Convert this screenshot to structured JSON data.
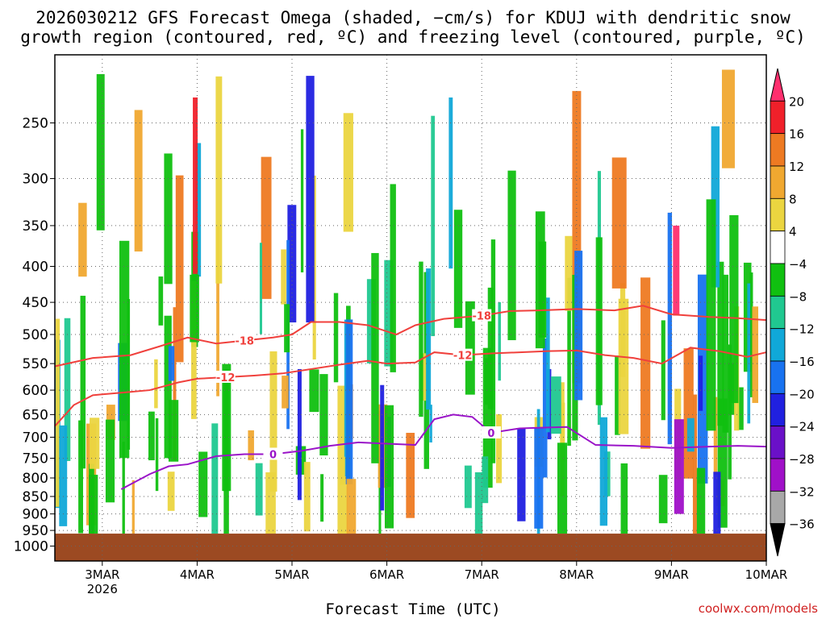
{
  "title_line1": "2026030212 GFS Forecast Omega (shaded, −cm/s) for KDUJ with dendritic snow",
  "title_line2": "growth region (contoured, red, ºC) and freezing level (contoured, purple, ºC)",
  "credit": "coolwx.com/models",
  "colors": {
    "ground": "#9c4a22",
    "red_contour": "#f0403c",
    "purple_contour": "#9a14c8",
    "grid": "#666666"
  },
  "chart_data": {
    "type": "heatmap",
    "title": "2026030212 GFS Forecast Omega (shaded, −cm/s) for KDUJ with dendritic snow growth region (contoured, red, ºC) and freezing level (contoured, purple, ºC)",
    "xlabel": "Forecast Time (UTC)",
    "ylabel": "",
    "x_ticks": [
      {
        "label": "3MAR",
        "sub": "2026",
        "day": 3
      },
      {
        "label": "4MAR",
        "sub": "",
        "day": 4
      },
      {
        "label": "5MAR",
        "sub": "",
        "day": 5
      },
      {
        "label": "6MAR",
        "sub": "",
        "day": 6
      },
      {
        "label": "7MAR",
        "sub": "",
        "day": 7
      },
      {
        "label": "8MAR",
        "sub": "",
        "day": 8
      },
      {
        "label": "9MAR",
        "sub": "",
        "day": 9
      },
      {
        "label": "10MAR",
        "sub": "",
        "day": 10
      }
    ],
    "xlim": [
      2.5,
      10.0
    ],
    "y_ticks": [
      250,
      300,
      350,
      400,
      450,
      500,
      550,
      600,
      650,
      700,
      750,
      800,
      850,
      900,
      950,
      1000
    ],
    "ylim": [
      200,
      1050
    ],
    "y_scale": "log",
    "grid": true,
    "colorbar": {
      "labels": [
        "20",
        "16",
        "12",
        "8",
        "4",
        "−4",
        "−8",
        "−12",
        "−16",
        "−20",
        "−24",
        "−28",
        "−32",
        "−36"
      ],
      "colors": [
        "#ff2f6e",
        "#f0202a",
        "#ee7a22",
        "#f0a830",
        "#ebd540",
        "#ffffff",
        "#10c010",
        "#20c890",
        "#10a8d8",
        "#1872f0",
        "#2020e0",
        "#6a10c8",
        "#a010c8",
        "#a8a8a8",
        "#000000"
      ]
    },
    "contours": [
      {
        "label": "-18",
        "color": "#f0403c",
        "x": [
          2.5,
          2.9,
          3.3,
          3.6,
          3.9,
          4.2,
          4.5,
          4.8,
          5.0,
          5.2,
          5.5,
          5.8,
          6.1,
          6.3,
          6.6,
          7.0,
          7.3,
          7.6,
          8.0,
          8.4,
          8.7,
          9.0,
          9.4,
          9.7,
          10.0
        ],
        "y": [
          555,
          540,
          535,
          520,
          505,
          515,
          510,
          505,
          500,
          480,
          480,
          485,
          500,
          485,
          475,
          470,
          463,
          462,
          460,
          462,
          455,
          468,
          472,
          474,
          477
        ]
      },
      {
        "label": "-12",
        "color": "#f0403c",
        "x": [
          2.5,
          2.7,
          2.9,
          3.2,
          3.5,
          3.8,
          4.0,
          4.3,
          4.6,
          4.9,
          5.2,
          5.5,
          5.8,
          6.0,
          6.3,
          6.5,
          6.8,
          7.1,
          7.4,
          7.7,
          8.0,
          8.3,
          8.6,
          8.9,
          9.2,
          9.5,
          9.8,
          10.0
        ],
        "y": [
          675,
          630,
          610,
          605,
          600,
          585,
          578,
          575,
          572,
          568,
          560,
          552,
          545,
          550,
          548,
          530,
          535,
          532,
          530,
          528,
          527,
          535,
          540,
          550,
          522,
          528,
          538,
          530
        ]
      },
      {
        "label": "0",
        "color": "#9a14c8",
        "x": [
          3.2,
          3.5,
          3.7,
          3.9,
          4.2,
          4.5,
          4.8,
          5.1,
          5.4,
          5.7,
          6.0,
          6.3,
          6.5,
          6.7,
          6.9,
          7.1,
          7.4,
          7.7,
          7.9,
          8.2,
          8.6,
          9.0,
          9.4,
          9.7,
          10.0
        ],
        "y": [
          830,
          790,
          770,
          765,
          745,
          740,
          740,
          732,
          720,
          712,
          715,
          718,
          660,
          650,
          655,
          690,
          680,
          678,
          677,
          718,
          720,
          725,
          722,
          720,
          722
        ]
      }
    ],
    "ground_level_hpa": 960
  }
}
